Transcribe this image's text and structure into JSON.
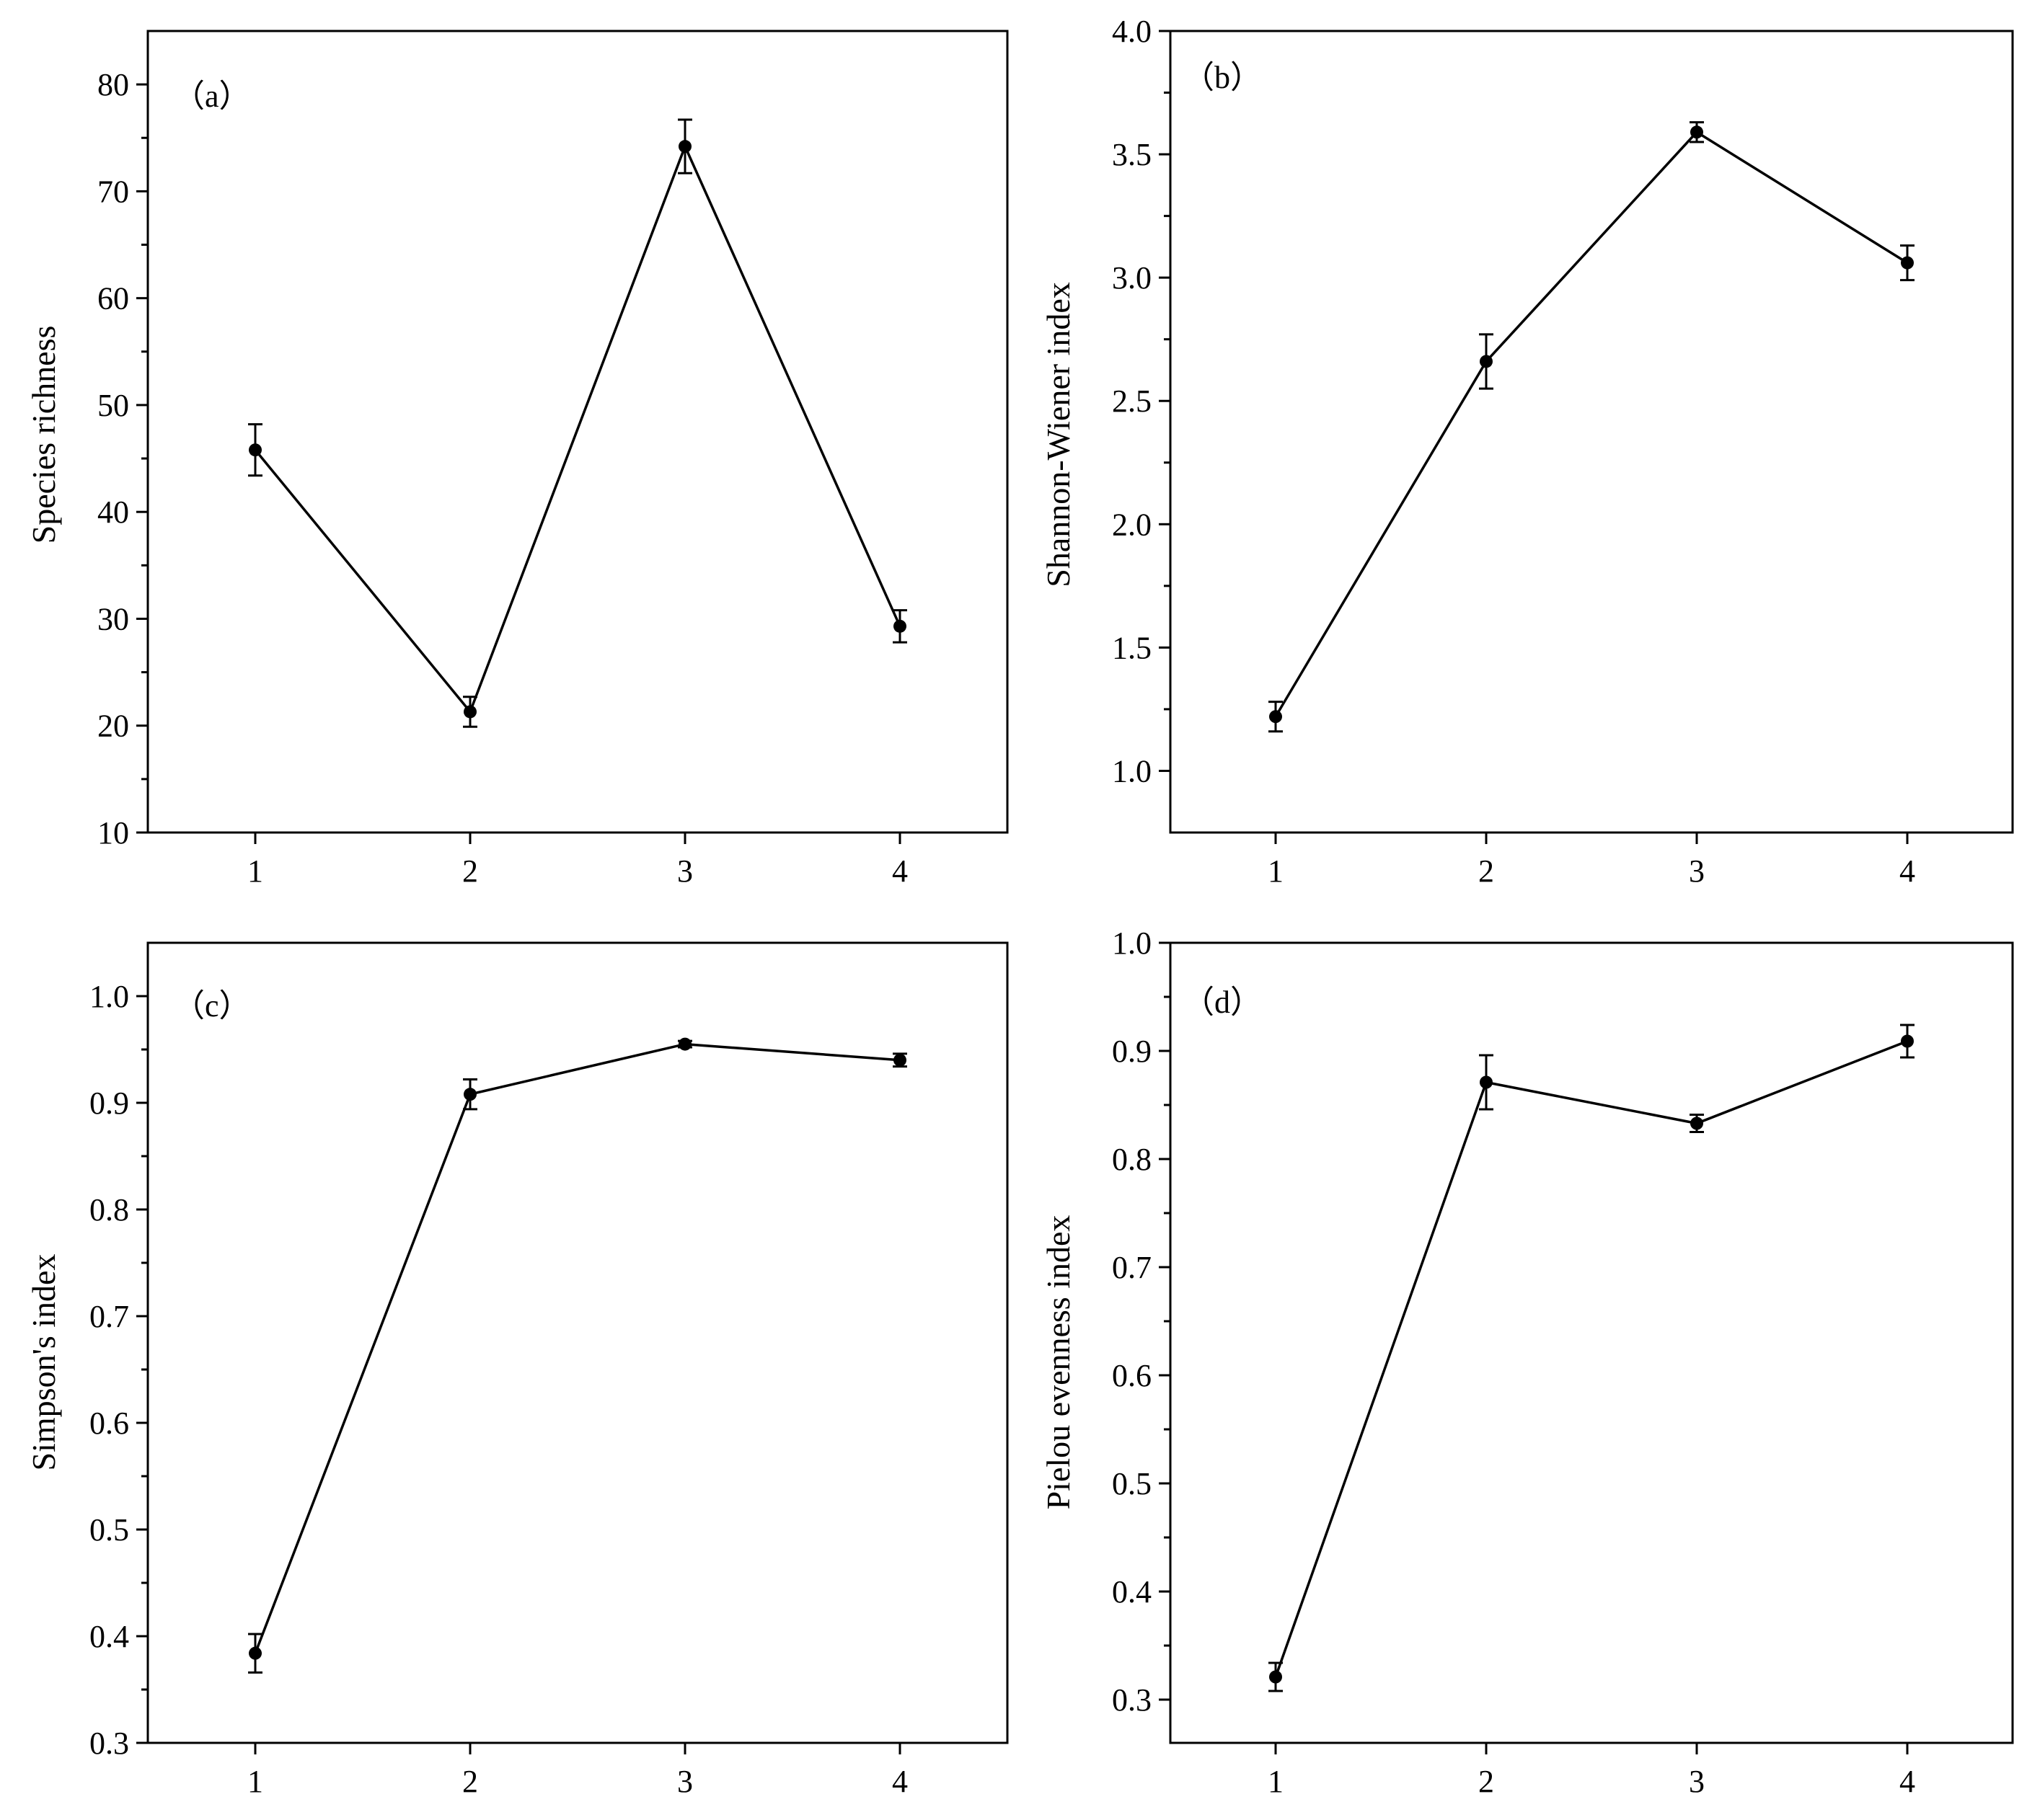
{
  "chart_data": [
    {
      "id": "a",
      "type": "line",
      "panel_label": "（a）",
      "title": "",
      "xlabel": "",
      "ylabel": "Species richness",
      "x": [
        1,
        2,
        3,
        4
      ],
      "x_ticks": [
        "1",
        "2",
        "3",
        "4"
      ],
      "xlim": [
        0.5,
        4.5
      ],
      "ylim": [
        10,
        85
      ],
      "y_ticks": [
        10,
        20,
        30,
        40,
        50,
        60,
        70,
        80
      ],
      "y_tick_labels": [
        "10",
        "20",
        "30",
        "40",
        "50",
        "60",
        "70",
        "80"
      ],
      "series": [
        {
          "values": [
            45.8,
            21.3,
            74.2,
            29.3
          ],
          "errors": [
            2.4,
            1.4,
            2.5,
            1.5
          ]
        }
      ]
    },
    {
      "id": "b",
      "type": "line",
      "panel_label": "（b）",
      "title": "",
      "xlabel": "",
      "ylabel": "Shannon-Wiener index",
      "x": [
        1,
        2,
        3,
        4
      ],
      "x_ticks": [
        "1",
        "2",
        "3",
        "4"
      ],
      "xlim": [
        0.5,
        4.5
      ],
      "ylim": [
        0.75,
        4.0
      ],
      "y_ticks": [
        1.0,
        1.5,
        2.0,
        2.5,
        3.0,
        3.5,
        4.0
      ],
      "y_tick_labels": [
        "1.0",
        "1.5",
        "2.0",
        "2.5",
        "3.0",
        "3.5",
        "4.0"
      ],
      "series": [
        {
          "values": [
            1.22,
            2.66,
            3.59,
            3.06
          ],
          "errors": [
            0.06,
            0.11,
            0.04,
            0.07
          ]
        }
      ]
    },
    {
      "id": "c",
      "type": "line",
      "panel_label": "（c）",
      "title": "",
      "xlabel": "",
      "ylabel": "Simpson's index",
      "x": [
        1,
        2,
        3,
        4
      ],
      "x_ticks": [
        "1",
        "2",
        "3",
        "4"
      ],
      "xlim": [
        0.5,
        4.5
      ],
      "ylim": [
        0.3,
        1.05
      ],
      "y_ticks": [
        0.3,
        0.4,
        0.5,
        0.6,
        0.7,
        0.8,
        0.9,
        1.0
      ],
      "y_tick_labels": [
        "0.3",
        "0.4",
        "0.5",
        "0.6",
        "0.7",
        "0.8",
        "0.9",
        "1.0"
      ],
      "series": [
        {
          "values": [
            0.384,
            0.908,
            0.955,
            0.94
          ],
          "errors": [
            0.018,
            0.014,
            0.003,
            0.006
          ]
        }
      ]
    },
    {
      "id": "d",
      "type": "line",
      "panel_label": "（d）",
      "title": "",
      "xlabel": "",
      "ylabel": "Pielou evenness index",
      "x": [
        1,
        2,
        3,
        4
      ],
      "x_ticks": [
        "1",
        "2",
        "3",
        "4"
      ],
      "xlim": [
        0.5,
        4.5
      ],
      "ylim": [
        0.26,
        1.0
      ],
      "y_ticks": [
        0.3,
        0.4,
        0.5,
        0.6,
        0.7,
        0.8,
        0.9,
        1.0
      ],
      "y_tick_labels": [
        "0.3",
        "0.4",
        "0.5",
        "0.6",
        "0.7",
        "0.8",
        "0.9",
        "1.0"
      ],
      "series": [
        {
          "values": [
            0.321,
            0.871,
            0.833,
            0.909
          ],
          "errors": [
            0.013,
            0.025,
            0.008,
            0.015
          ]
        }
      ]
    }
  ]
}
